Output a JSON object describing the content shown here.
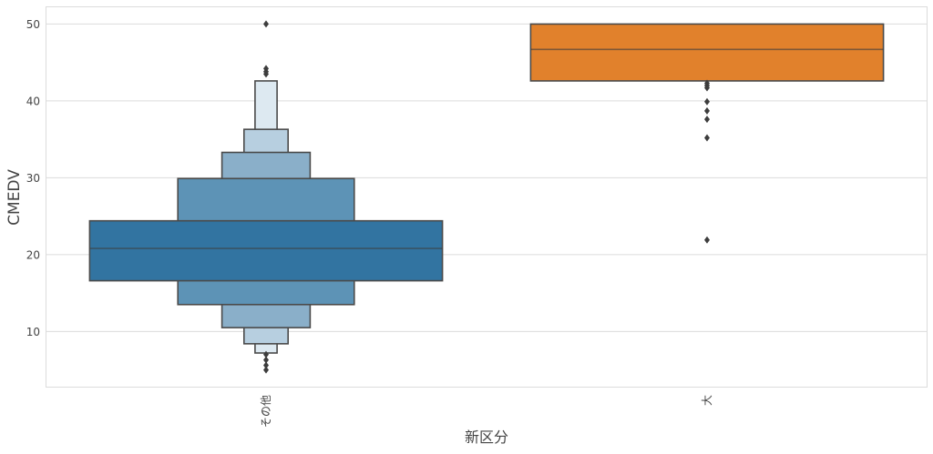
{
  "chart_data": {
    "type": "boxen",
    "title": "",
    "xlabel": "新区分",
    "ylabel": "CMEDV",
    "ylim": [
      2.7,
      52.3
    ],
    "yticks": [
      10,
      20,
      30,
      40,
      50
    ],
    "grid": "horizontal",
    "categories": [
      "その他",
      "大"
    ],
    "series": [
      {
        "category": "その他",
        "color": "#3274a1",
        "median": 20.8,
        "levels": [
          {
            "low": 16.6,
            "high": 24.4,
            "fill": "#3274a1"
          },
          {
            "low": 13.5,
            "high": 29.9,
            "fill": "#5d93b6"
          },
          {
            "low": 10.5,
            "high": 33.3,
            "fill": "#8aafc9"
          },
          {
            "low": 8.4,
            "high": 36.3,
            "fill": "#b7cfe0"
          },
          {
            "low": 7.2,
            "high": 42.6,
            "fill": "#dde9f1"
          }
        ],
        "outliers": [
          50.0,
          44.2,
          43.8,
          43.5,
          7.0,
          6.3,
          5.6,
          5.0
        ]
      },
      {
        "category": "大",
        "color": "#e1812c",
        "median": 46.7,
        "levels": [
          {
            "low": 42.6,
            "high": 50.0,
            "fill": "#e1812c"
          }
        ],
        "outliers": [
          42.3,
          42.0,
          41.7,
          39.9,
          38.7,
          37.6,
          35.2,
          21.9
        ]
      }
    ]
  }
}
